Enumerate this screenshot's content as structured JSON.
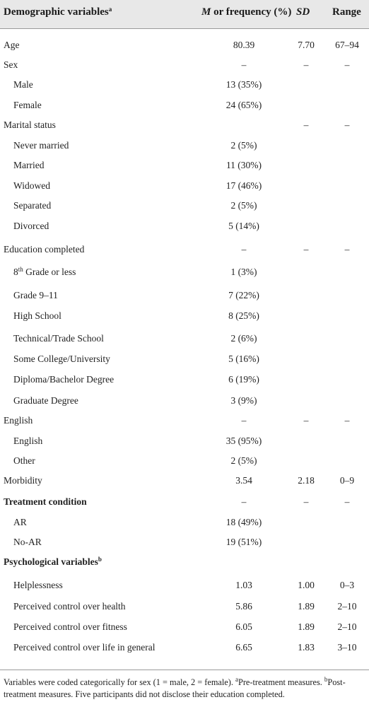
{
  "header": {
    "col_var": "Demographic variables",
    "col_var_sup": "a",
    "col_m_italic": "M",
    "col_m_rest": " or frequency (%)",
    "col_sd": "SD",
    "col_range": "Range"
  },
  "rows": [
    {
      "label": "Age",
      "m": "80.39",
      "sd": "7.70",
      "range": "67–94"
    },
    {
      "label": "Sex",
      "m": "–",
      "sd": "–",
      "range": "–"
    },
    {
      "label": "Male",
      "m": "13 (35%)"
    },
    {
      "label": "Female",
      "m": "24 (65%)"
    },
    {
      "label": "Marital status",
      "sd": "–",
      "range": "–"
    },
    {
      "label": "Never married",
      "m": "2 (5%)"
    },
    {
      "label": "Married",
      "m": "11 (30%)"
    },
    {
      "label": "Widowed",
      "m": "17 (46%)"
    },
    {
      "label": "Separated",
      "m": "2 (5%)"
    },
    {
      "label": "Divorced",
      "m": "5 (14%)"
    },
    {
      "label": "Education completed",
      "m": "–",
      "sd": "–",
      "range": "–"
    },
    {
      "label": "8",
      "label_sup": "th",
      "label_rest": " Grade or less",
      "m": "1 (3%)"
    },
    {
      "label": "Grade 9–11",
      "m": "7 (22%)"
    },
    {
      "label": "High School",
      "m": "8 (25%)"
    },
    {
      "label": "Technical/Trade School",
      "m": "2 (6%)"
    },
    {
      "label": "Some College/University",
      "m": "5 (16%)"
    },
    {
      "label": "Diploma/Bachelor Degree",
      "m": "6 (19%)"
    },
    {
      "label": "Graduate Degree",
      "m": "3 (9%)"
    },
    {
      "label": "English",
      "m": "–",
      "sd": "–",
      "range": "–"
    },
    {
      "label": "English",
      "m": "35 (95%)"
    },
    {
      "label": "Other",
      "m": "2 (5%)"
    },
    {
      "label": "Morbidity",
      "m": "3.54",
      "sd": "2.18",
      "range": "0–9"
    },
    {
      "label": "Treatment condition",
      "m": "–",
      "sd": "–",
      "range": "–"
    },
    {
      "label": "AR",
      "m": "18 (49%)"
    },
    {
      "label": "No-AR",
      "m": "19 (51%)"
    },
    {
      "label": "Psychological variables",
      "label_sup": "b"
    },
    {
      "label": "Helplessness",
      "m": "1.03",
      "sd": "1.00",
      "range": "0–3"
    },
    {
      "label": "Perceived control over health",
      "m": "5.86",
      "sd": "1.89",
      "range": "2–10"
    },
    {
      "label": "Perceived control over fitness",
      "m": "6.05",
      "sd": "1.89",
      "range": "2–10"
    },
    {
      "label": "Perceived control over life in general",
      "m": "6.65",
      "sd": "1.83",
      "range": "3–10"
    }
  ],
  "note": {
    "text1": "Variables were coded categorically for sex (1 = male, 2 = female). ",
    "sup_a": "a",
    "text2": "Pre-treatment measures. ",
    "sup_b": "b",
    "text3": "Post-treatment measures. Five participants did not disclose their education completed."
  }
}
